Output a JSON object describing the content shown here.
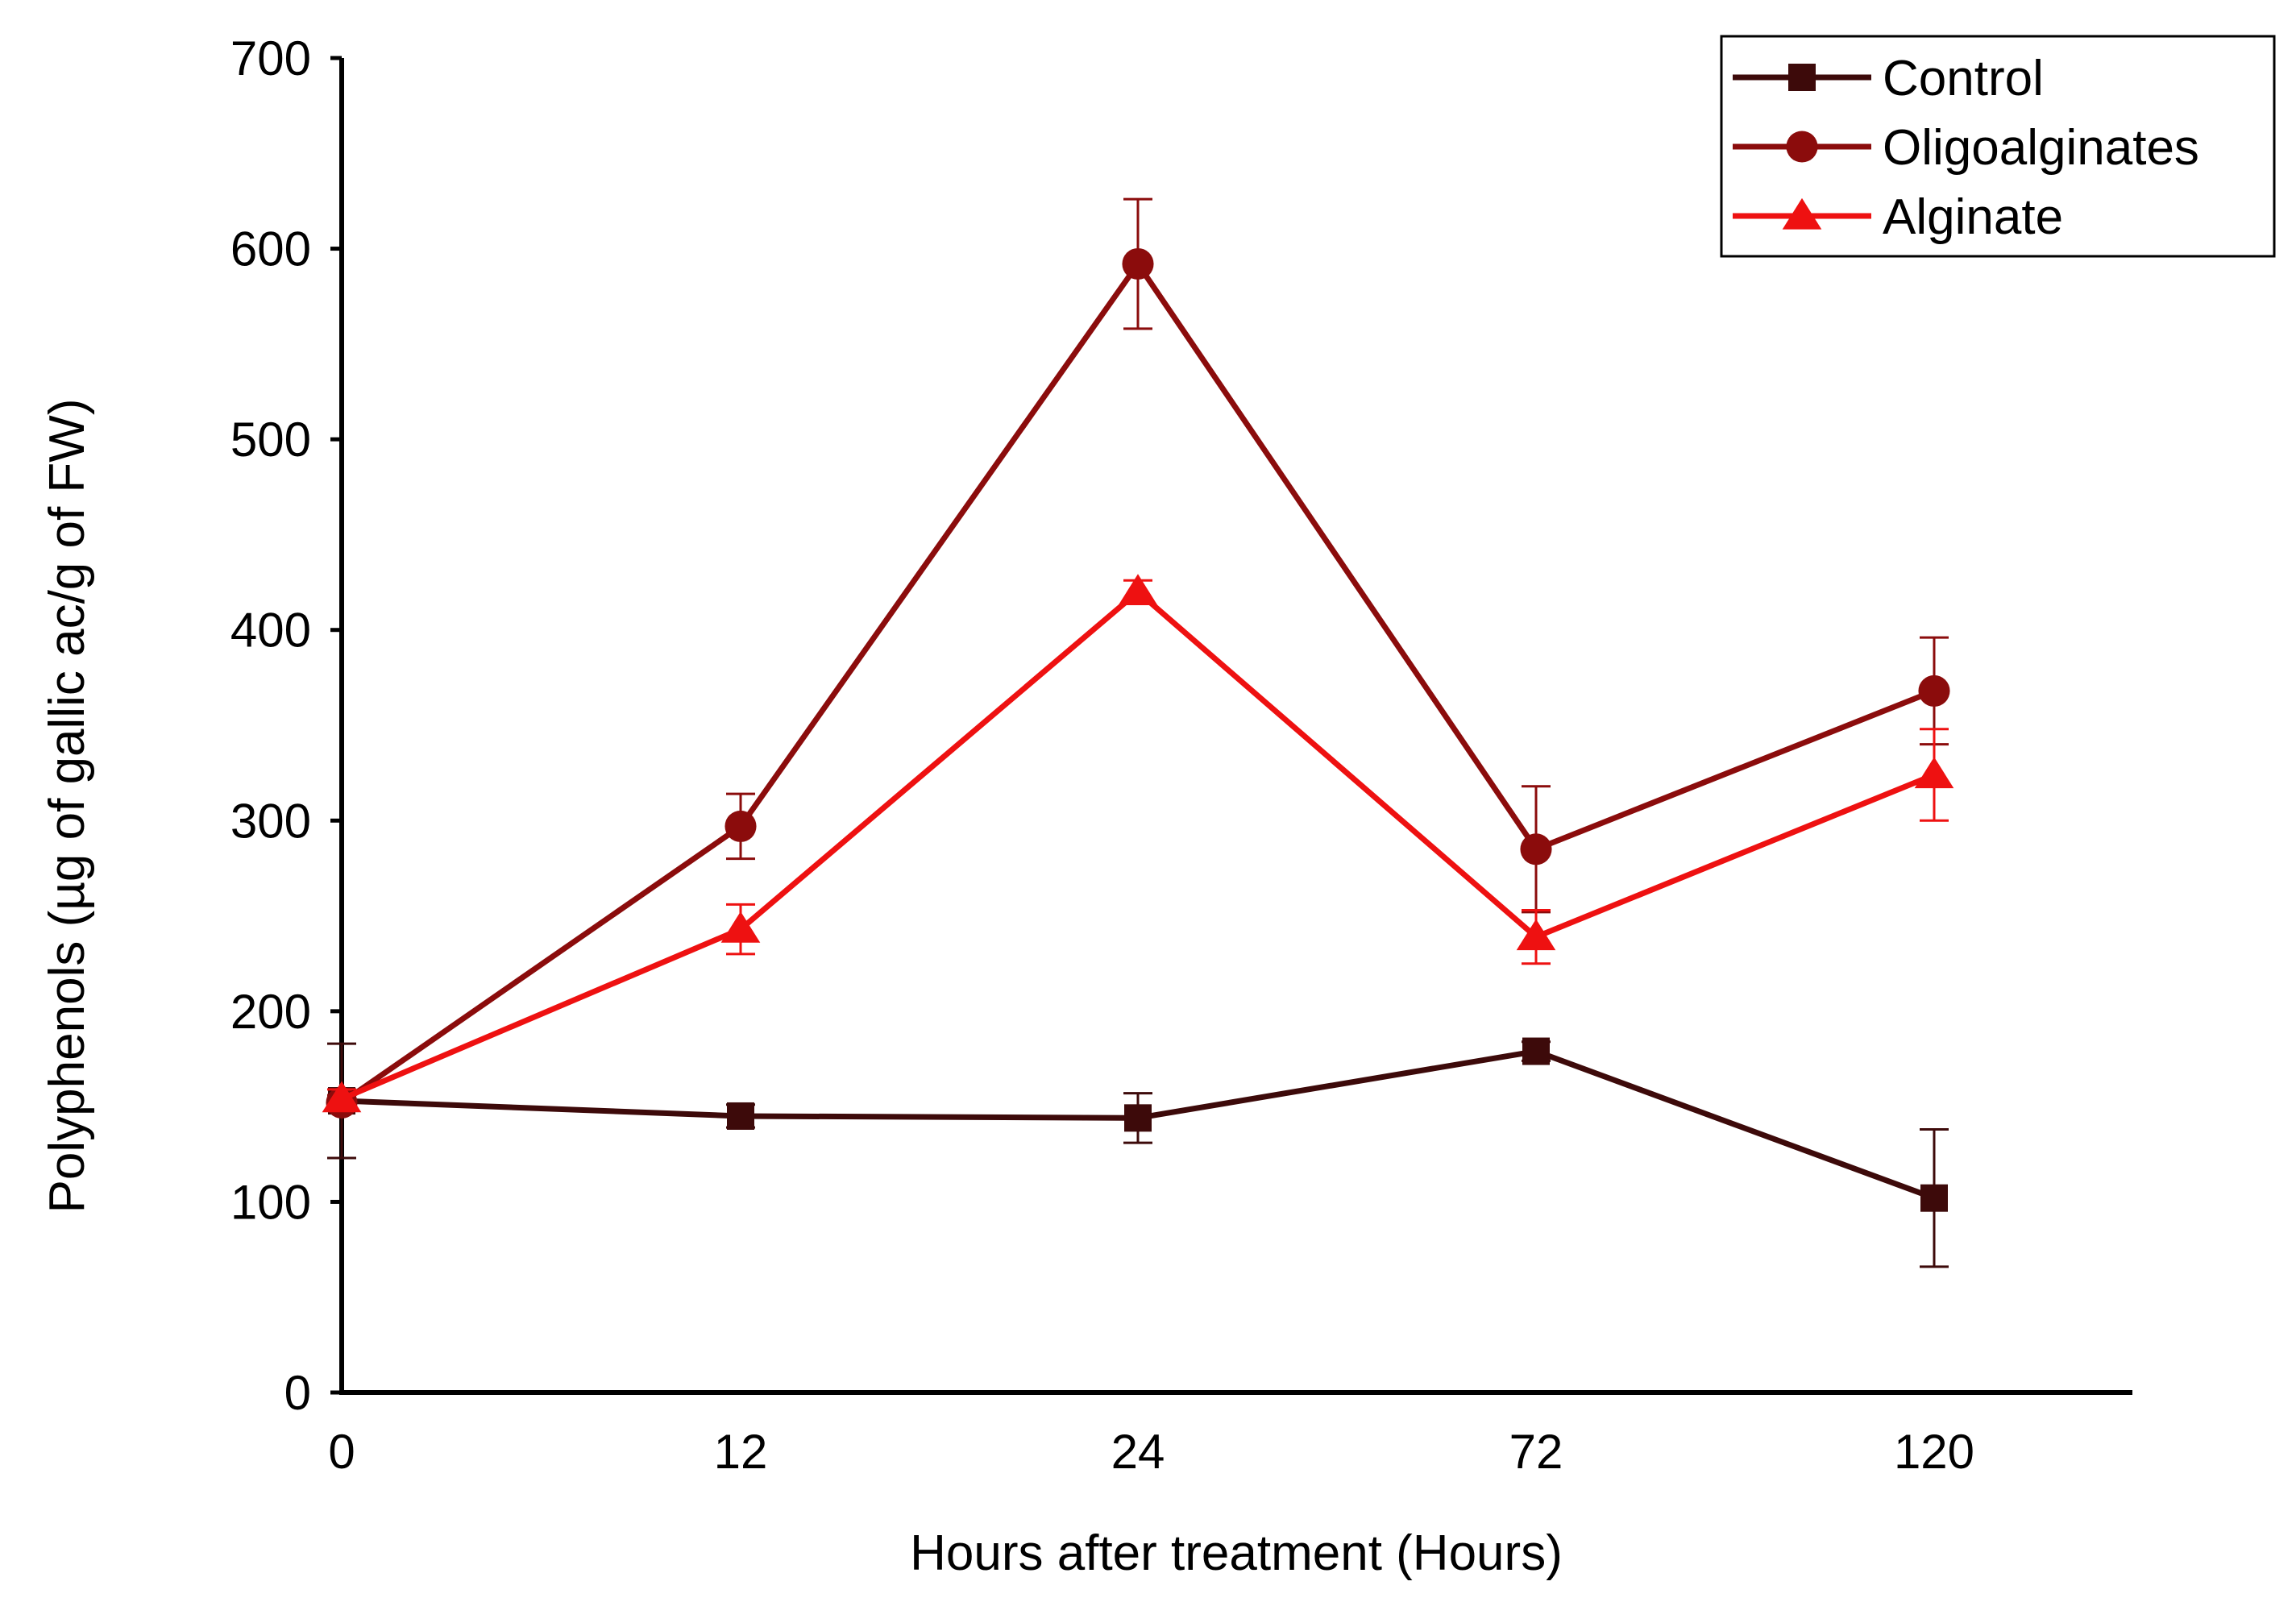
{
  "chart_data": {
    "type": "line",
    "title": "",
    "xlabel": "Hours after treatment (Hours)",
    "ylabel": "Polyphenols (µg of gallic ac/g of FW)",
    "categories": [
      "0",
      "12",
      "24",
      "72",
      "120"
    ],
    "ylim": [
      0,
      700
    ],
    "yticks": [
      "0",
      "100",
      "200",
      "300",
      "400",
      "500",
      "600",
      "700"
    ],
    "grid": false,
    "legend_position": "top-right",
    "series": [
      {
        "name": "Control",
        "marker": "square",
        "color": "#3d0a0a",
        "values": [
          153,
          145,
          144,
          179,
          102
        ],
        "errors": [
          30,
          6,
          13,
          5,
          36
        ]
      },
      {
        "name": "Oligoalginates",
        "marker": "circle",
        "color": "#8b0c0c",
        "values": [
          152,
          297,
          592,
          285,
          368
        ],
        "errors": [
          4,
          17,
          34,
          33,
          28
        ]
      },
      {
        "name": "Alginate",
        "marker": "triangle",
        "color": "#ee1111",
        "values": [
          154,
          243,
          420,
          239,
          324
        ],
        "errors": [
          5,
          13,
          6,
          14,
          24
        ]
      }
    ]
  }
}
